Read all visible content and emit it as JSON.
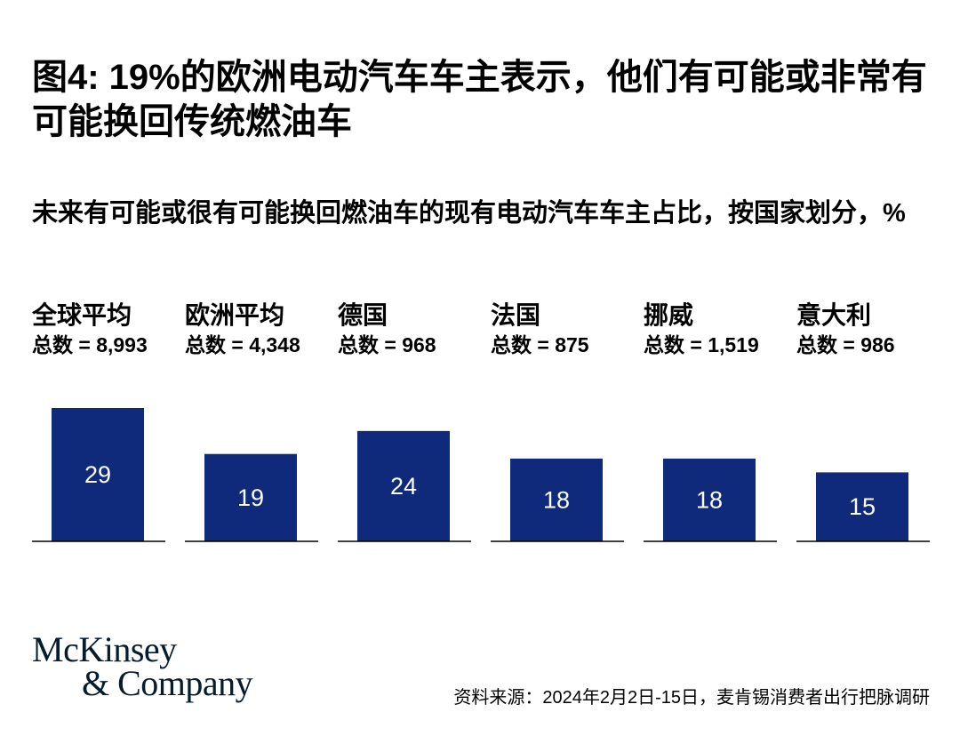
{
  "title": "图4: 19%的欧洲电动汽车车主表示，他们有可能或非常有可能换回传统燃油车",
  "subtitle": "未来有可能或很有可能换回燃油车的现有电动汽车车主占比，按国家划分，%",
  "logo": {
    "line1": "McKinsey",
    "line2": "& Company"
  },
  "source": "资料来源：2024年2月2日-15日，麦肯锡消费者出行把脉调研",
  "colors": {
    "bar": "#0f2a7a",
    "baseline": "#000000"
  },
  "chart_data": {
    "type": "bar",
    "categories": [
      "全球平均",
      "欧洲平均",
      "德国",
      "法国",
      "挪威",
      "意大利"
    ],
    "sample_sizes": [
      "总数 = 8,993",
      "总数 = 4,348",
      "总数 = 968",
      "总数 = 875",
      "总数 = 1,519",
      "总数 = 986"
    ],
    "values": [
      29,
      19,
      24,
      18,
      18,
      15
    ],
    "ylim": [
      0,
      29
    ],
    "grid": false,
    "legend": "none"
  }
}
